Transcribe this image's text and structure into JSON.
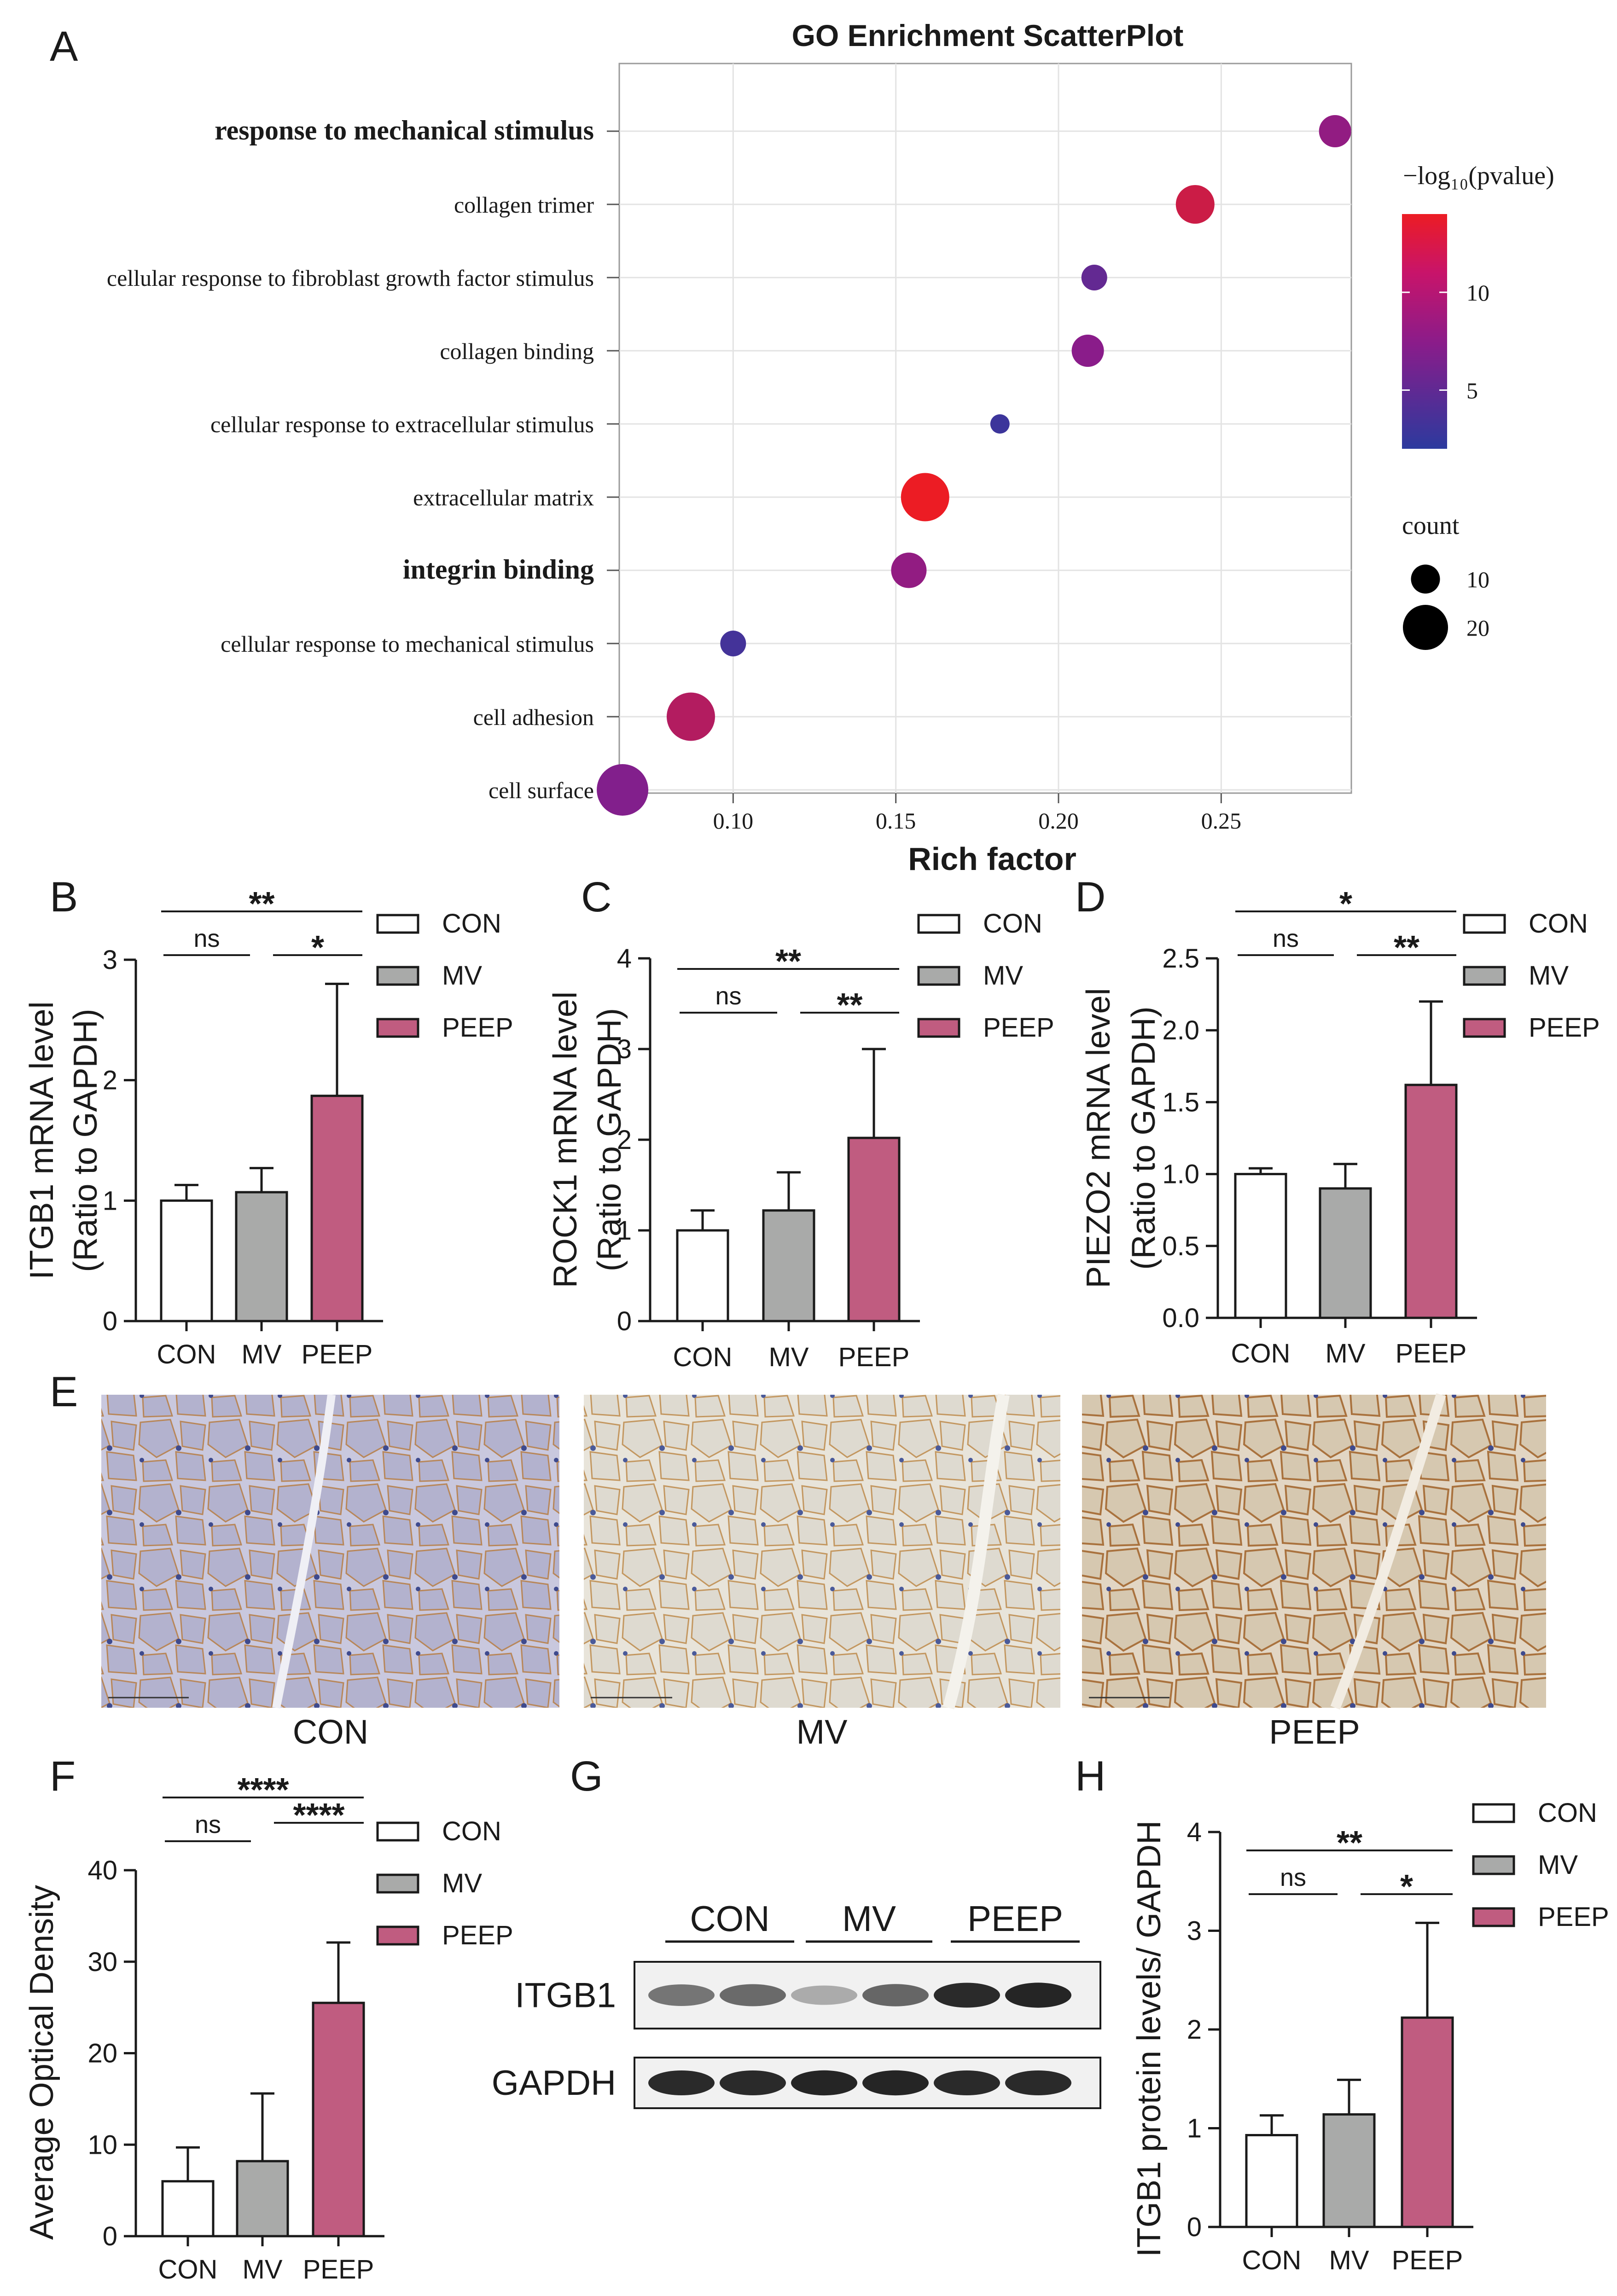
{
  "panel_letters": {
    "A": "A",
    "B": "B",
    "C": "C",
    "D": "D",
    "E": "E",
    "F": "F",
    "G": "G",
    "H": "H"
  },
  "colors": {
    "highlight": "#e01a22",
    "con_fill": "#ffffff",
    "mv_fill": "#a9aaa9",
    "peep_fill": "#c05c80",
    "low_color": "#2c3a9e",
    "mid_color": "#8a1c8a",
    "high_color": "#ec1c24"
  },
  "chart_data": [
    {
      "panel": "A",
      "type": "scatter",
      "title": "GO Enrichment ScatterPlot",
      "xlabel": "Rich factor",
      "xlim": [
        0.065,
        0.29
      ],
      "xticks": [
        0.1,
        0.15,
        0.2,
        0.25
      ],
      "xtick_labels": [
        "0.10",
        "0.15",
        "0.20",
        "0.25"
      ],
      "legend_color_title": "−log₁₀(pvalue)",
      "color_ticks": [
        5,
        10
      ],
      "color_tick_labels": [
        "5",
        "10"
      ],
      "color_range": [
        2,
        14
      ],
      "legend_size_title": "count",
      "size_legend": [
        10,
        20
      ],
      "size_legend_labels": [
        "10",
        "20"
      ],
      "terms": [
        {
          "label": "response to mechanical stimulus",
          "rich": 0.285,
          "logp": 8.5,
          "count": 12,
          "highlight": true
        },
        {
          "label": "collagen trimer",
          "rich": 0.242,
          "logp": 12.0,
          "count": 16,
          "highlight": false
        },
        {
          "label": "cellular response to fibroblast growth factor stimulus",
          "rich": 0.211,
          "logp": 5.5,
          "count": 8,
          "highlight": false
        },
        {
          "label": "collagen binding",
          "rich": 0.209,
          "logp": 8.0,
          "count": 12,
          "highlight": false
        },
        {
          "label": "cellular response to extracellular stimulus",
          "rich": 0.182,
          "logp": 3.0,
          "count": 4,
          "highlight": false
        },
        {
          "label": "extracellular matrix",
          "rich": 0.159,
          "logp": 14.0,
          "count": 22,
          "highlight": false
        },
        {
          "label": "integrin binding",
          "rich": 0.154,
          "logp": 8.5,
          "count": 14,
          "highlight": true
        },
        {
          "label": "cellular response to mechanical stimulus",
          "rich": 0.1,
          "logp": 3.5,
          "count": 8,
          "highlight": false
        },
        {
          "label": "cell adhesion",
          "rich": 0.087,
          "logp": 10.5,
          "count": 22,
          "highlight": false
        },
        {
          "label": "cell surface",
          "rich": 0.066,
          "logp": 7.5,
          "count": 24,
          "highlight": false
        }
      ]
    },
    {
      "panel": "B",
      "type": "bar",
      "categories": [
        "CON",
        "MV",
        "PEEP"
      ],
      "values": [
        1.0,
        1.07,
        1.87
      ],
      "errors": [
        0.13,
        0.2,
        0.93
      ],
      "ylabel_line1": "ITGB1 mRNA level",
      "ylabel_line2": "(Ratio to GAPDH)",
      "ylim": [
        0,
        3
      ],
      "yticks": [
        0,
        1,
        2,
        3
      ],
      "ytick_labels": [
        "0",
        "1",
        "2",
        "3"
      ],
      "legend": [
        "CON",
        "MV",
        "PEEP"
      ],
      "significance": [
        {
          "from": 0,
          "to": 2,
          "label": "**"
        },
        {
          "from": 0,
          "to": 1,
          "label": "ns"
        },
        {
          "from": 1,
          "to": 2,
          "label": "*"
        }
      ]
    },
    {
      "panel": "C",
      "type": "bar",
      "categories": [
        "CON",
        "MV",
        "PEEP"
      ],
      "values": [
        1.0,
        1.22,
        2.02
      ],
      "errors": [
        0.22,
        0.42,
        0.98
      ],
      "ylabel_line1": "ROCK1 mRNA level",
      "ylabel_line2": "(Ratio to GAPDH)",
      "ylim": [
        0,
        4
      ],
      "yticks": [
        0,
        1,
        2,
        3,
        4
      ],
      "ytick_labels": [
        "0",
        "1",
        "2",
        "3",
        "4"
      ],
      "legend": [
        "CON",
        "MV",
        "PEEP"
      ],
      "significance": [
        {
          "from": 0,
          "to": 2,
          "label": "**"
        },
        {
          "from": 0,
          "to": 1,
          "label": "ns"
        },
        {
          "from": 1,
          "to": 2,
          "label": "**"
        }
      ]
    },
    {
      "panel": "D",
      "type": "bar",
      "categories": [
        "CON",
        "MV",
        "PEEP"
      ],
      "values": [
        1.0,
        0.9,
        1.62
      ],
      "errors": [
        0.04,
        0.17,
        0.58
      ],
      "ylabel_line1": "PIEZO2 mRNA level",
      "ylabel_line2": "(Ratio to GAPDH)",
      "ylim": [
        0,
        2.5
      ],
      "yticks": [
        0,
        0.5,
        1.0,
        1.5,
        2.0,
        2.5
      ],
      "ytick_labels": [
        "0.0",
        "0.5",
        "1.0",
        "1.5",
        "2.0",
        "2.5"
      ],
      "legend": [
        "CON",
        "MV",
        "PEEP"
      ],
      "significance": [
        {
          "from": 0,
          "to": 2,
          "label": "*"
        },
        {
          "from": 0,
          "to": 1,
          "label": "ns"
        },
        {
          "from": 1,
          "to": 2,
          "label": "**"
        }
      ]
    },
    {
      "panel": "F",
      "type": "bar",
      "categories": [
        "CON",
        "MV",
        "PEEP"
      ],
      "values": [
        6.0,
        8.2,
        25.5
      ],
      "errors": [
        3.7,
        7.4,
        6.6
      ],
      "ylabel_line1": "Average Optical Density",
      "ylabel_line2": "",
      "ylim": [
        0,
        40
      ],
      "yticks": [
        0,
        10,
        20,
        30,
        40
      ],
      "ytick_labels": [
        "0",
        "10",
        "20",
        "30",
        "40"
      ],
      "legend": [
        "CON",
        "MV",
        "PEEP"
      ],
      "significance": [
        {
          "from": 0,
          "to": 2,
          "label": "****"
        },
        {
          "from": 0,
          "to": 1,
          "label": "ns"
        },
        {
          "from": 1,
          "to": 2,
          "label": "****"
        }
      ]
    },
    {
      "panel": "H",
      "type": "bar",
      "categories": [
        "CON",
        "MV",
        "PEEP"
      ],
      "values": [
        0.93,
        1.14,
        2.12
      ],
      "errors": [
        0.2,
        0.35,
        0.96
      ],
      "ylabel_line1": "ITGB1 protein levels/ GAPDH",
      "ylabel_line2": "",
      "ylim": [
        0,
        4
      ],
      "yticks": [
        0,
        1,
        2,
        3,
        4
      ],
      "ytick_labels": [
        "0",
        "1",
        "2",
        "3",
        "4"
      ],
      "legend": [
        "CON",
        "MV",
        "PEEP"
      ],
      "significance": [
        {
          "from": 0,
          "to": 2,
          "label": "**"
        },
        {
          "from": 0,
          "to": 1,
          "label": "ns"
        },
        {
          "from": 1,
          "to": 2,
          "label": "*"
        }
      ]
    }
  ],
  "histology": {
    "images": [
      {
        "caption": "CON",
        "tint": "#c9c8de",
        "stain": "#b8875a"
      },
      {
        "caption": "MV",
        "tint": "#e8e4da",
        "stain": "#c39760"
      },
      {
        "caption": "PEEP",
        "tint": "#e2d6c4",
        "stain": "#a9723e"
      }
    ]
  },
  "western_blot": {
    "groups": [
      "CON",
      "MV",
      "PEEP"
    ],
    "rows": [
      {
        "label": "ITGB1",
        "intensities": [
          0.55,
          0.6,
          0.3,
          0.62,
          0.9,
          0.92
        ]
      },
      {
        "label": "GAPDH",
        "intensities": [
          0.9,
          0.9,
          0.92,
          0.92,
          0.9,
          0.9
        ]
      }
    ]
  }
}
